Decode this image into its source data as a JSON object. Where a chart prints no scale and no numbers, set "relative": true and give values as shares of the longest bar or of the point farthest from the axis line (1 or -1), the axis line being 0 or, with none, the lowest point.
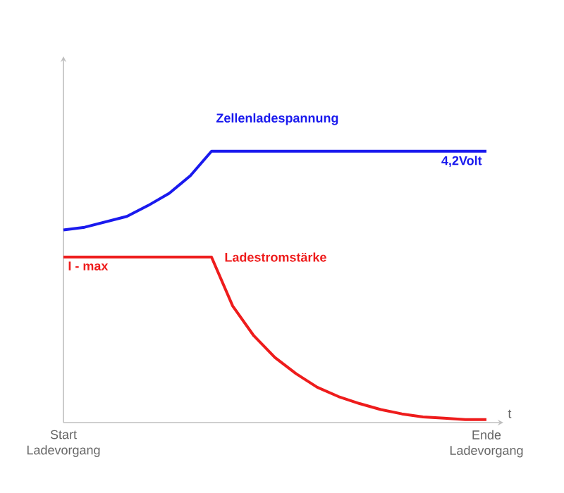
{
  "chart_data": {
    "type": "line",
    "relative": true,
    "xlabel": "t",
    "categories": [
      "Start Ladevorgang",
      null,
      null,
      null,
      null,
      null,
      null,
      null,
      null,
      null,
      null,
      null,
      null,
      null,
      null,
      null,
      null,
      null,
      null,
      null,
      "Ende Ladevorgang"
    ],
    "series": [
      {
        "name": "Zellenladespannung",
        "color": "#1a1aee",
        "values": [
          0.71,
          0.72,
          0.74,
          0.76,
          0.8,
          0.845,
          0.91,
          1,
          1,
          1,
          1,
          1,
          1,
          1,
          1,
          1,
          1,
          1,
          1,
          1,
          1
        ]
      },
      {
        "name": "Ladestromstärke",
        "color": "#ee1c1c",
        "values": [
          0.61,
          0.61,
          0.61,
          0.61,
          0.61,
          0.61,
          0.61,
          0.61,
          0.43,
          0.32,
          0.24,
          0.18,
          0.13,
          0.096,
          0.07,
          0.048,
          0.032,
          0.021,
          0.016,
          0.011,
          0.011
        ]
      }
    ],
    "annotations": [
      "4,2Volt",
      "I - max"
    ]
  }
}
